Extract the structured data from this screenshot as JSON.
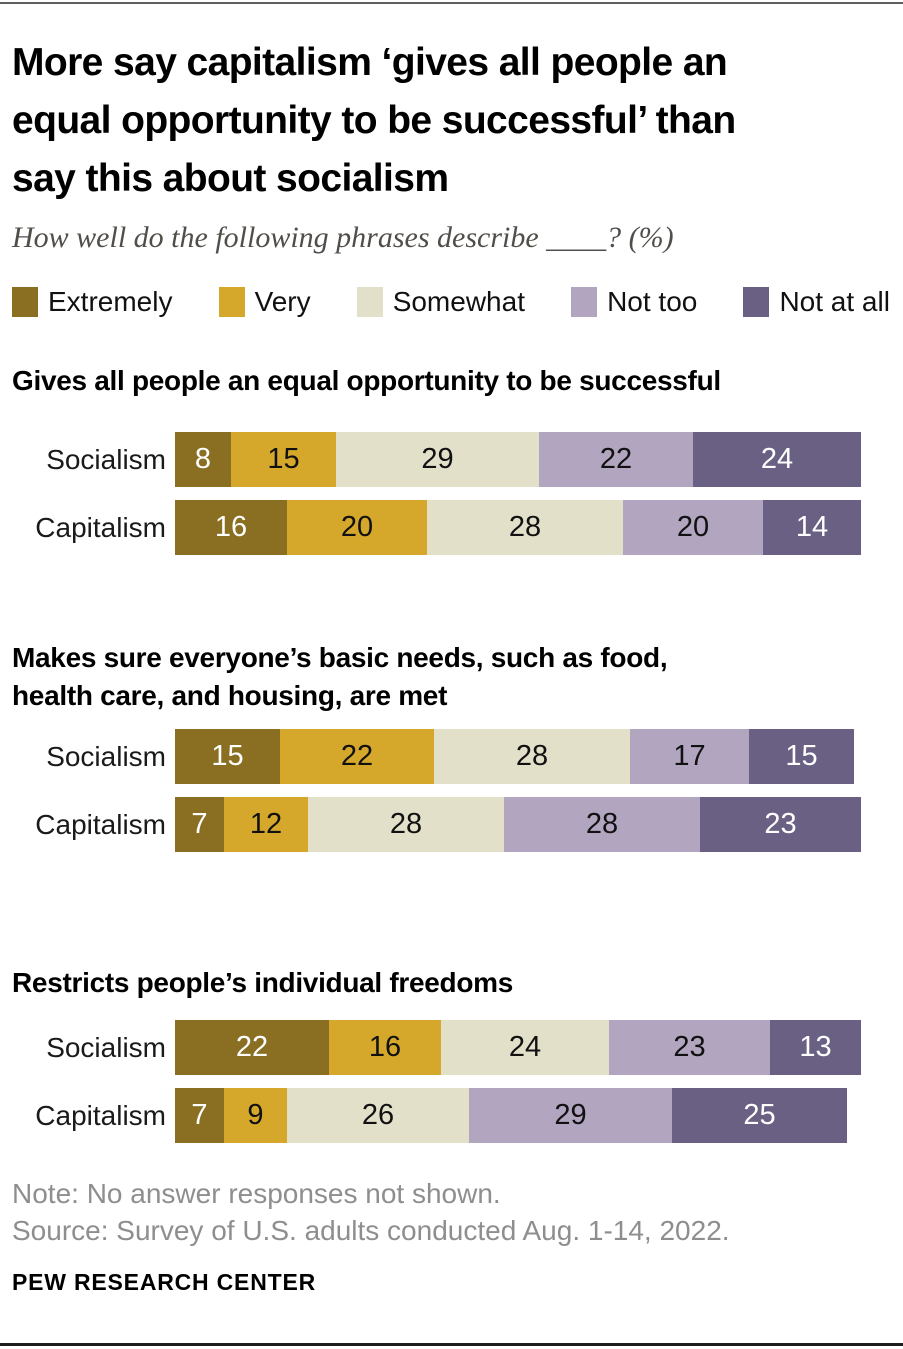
{
  "header": {
    "title": "More say capitalism ‘gives all people an\nequal opportunity to be successful’ than\nsay this about socialism",
    "subtitle": "How well do the following phrases describe ____? (%)"
  },
  "chart_data": {
    "type": "bar",
    "variant": "horizontal-stacked",
    "unit": "%",
    "legend_position": "top",
    "axis": {
      "min": 0,
      "max": 100
    },
    "categories": [
      "Extremely",
      "Very",
      "Somewhat",
      "Not too",
      "Not at all"
    ],
    "colors": [
      "#8a6f22",
      "#d5a72b",
      "#e3e0ca",
      "#b1a5c0",
      "#6a6083"
    ],
    "value_label_colors": [
      "#ffffff",
      "#111111",
      "#111111",
      "#111111",
      "#ffffff"
    ],
    "sections": [
      {
        "heading": "Gives all people an equal opportunity to be successful",
        "rows": [
          {
            "label": "Socialism",
            "values": [
              8,
              15,
              29,
              22,
              24
            ]
          },
          {
            "label": "Capitalism",
            "values": [
              16,
              20,
              28,
              20,
              14
            ]
          }
        ]
      },
      {
        "heading": "Makes sure everyone’s basic needs, such as food,\nhealth care, and housing, are met",
        "rows": [
          {
            "label": "Socialism",
            "values": [
              15,
              22,
              28,
              17,
              15
            ]
          },
          {
            "label": "Capitalism",
            "values": [
              7,
              12,
              28,
              28,
              23
            ]
          }
        ]
      },
      {
        "heading": "Restricts people’s individual freedoms",
        "rows": [
          {
            "label": "Socialism",
            "values": [
              22,
              16,
              24,
              23,
              13
            ]
          },
          {
            "label": "Capitalism",
            "values": [
              7,
              9,
              26,
              29,
              25
            ]
          }
        ]
      }
    ]
  },
  "footer": {
    "note": "Note: No answer responses not shown.",
    "source": "Source: Survey of U.S. adults conducted Aug. 1-14, 2022.",
    "brand": "PEW RESEARCH CENTER"
  }
}
